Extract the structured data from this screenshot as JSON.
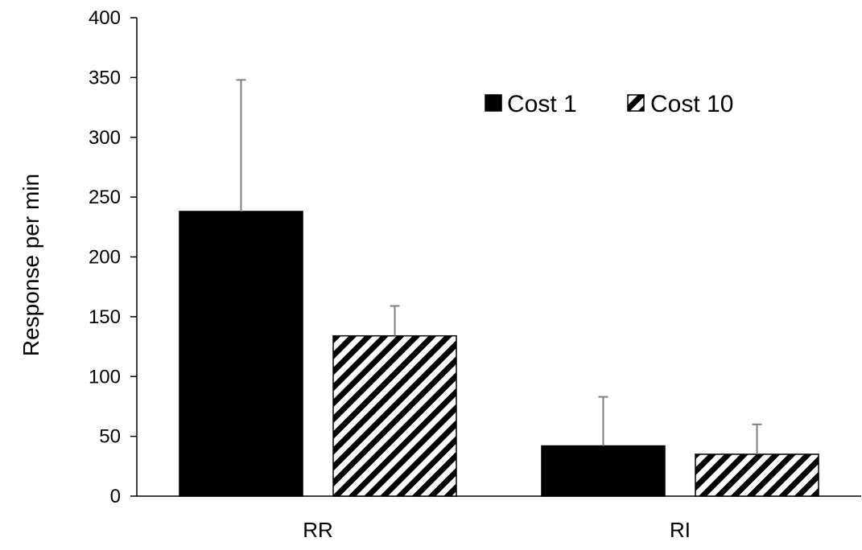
{
  "chart_data": {
    "type": "bar",
    "title": "",
    "xlabel": "",
    "ylabel": "Response per min",
    "ylim": [
      0,
      400
    ],
    "yticks": [
      0,
      50,
      100,
      150,
      200,
      250,
      300,
      350,
      400
    ],
    "grid": false,
    "legend_position": "top-right",
    "categories": [
      "RR",
      "RI"
    ],
    "series": [
      {
        "name": "Cost 1",
        "fill": "solid",
        "color": "#000000",
        "values": [
          238,
          42
        ],
        "error_plus": [
          110,
          41
        ]
      },
      {
        "name": "Cost 10",
        "fill": "diagonal-hatch",
        "color": "#000000",
        "values": [
          134,
          35
        ],
        "error_plus": [
          25,
          25
        ]
      }
    ]
  }
}
